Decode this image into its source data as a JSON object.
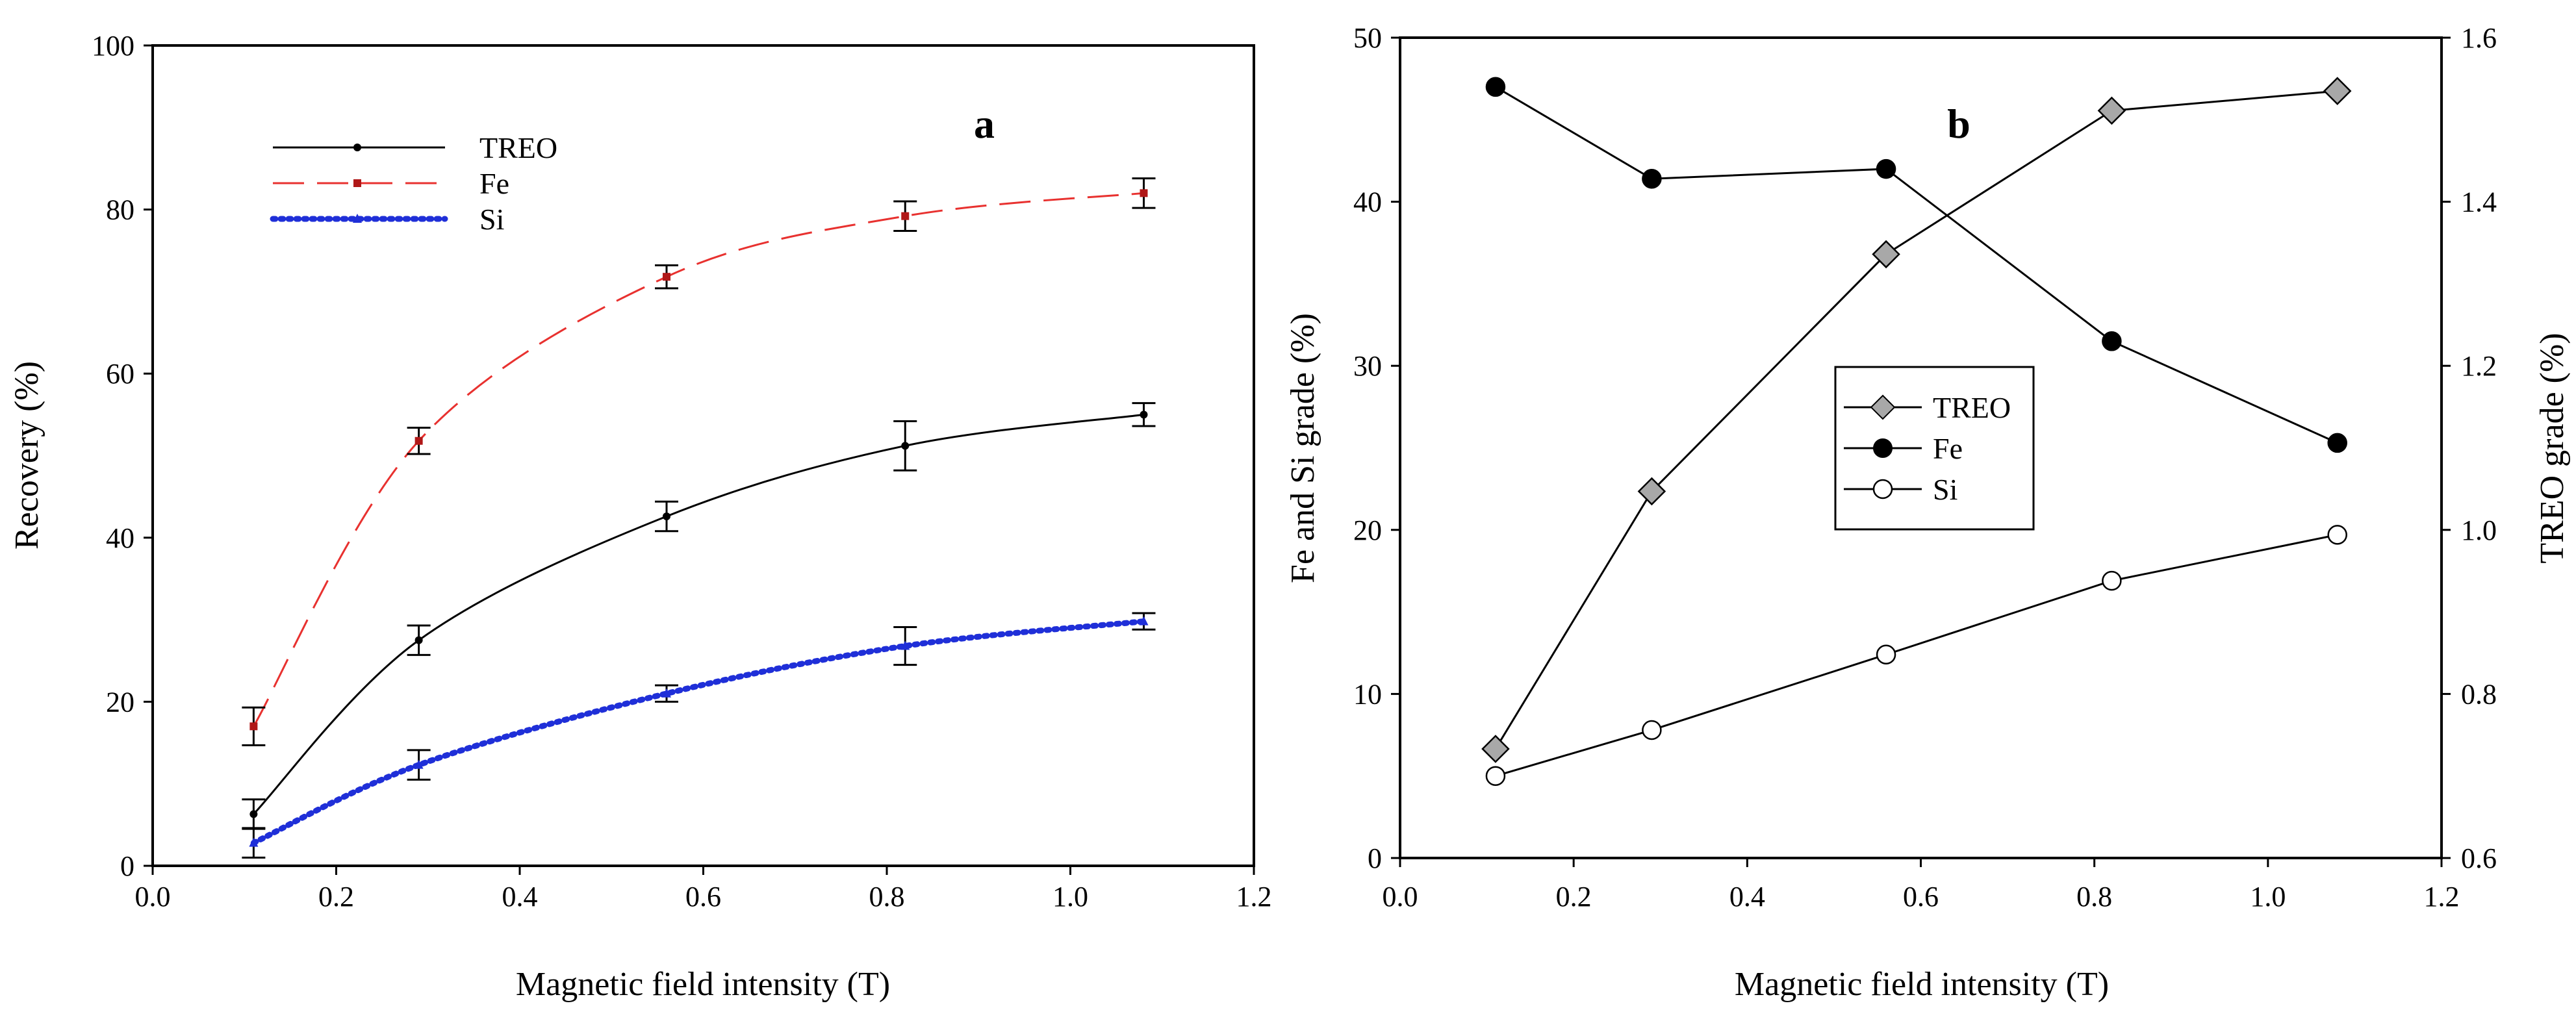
{
  "chart_data": [
    {
      "panel": "a",
      "type": "line",
      "xlabel": "Magnetic field intensity (T)",
      "ylabel": "Recovery (%)",
      "xlim": [
        0.0,
        1.2
      ],
      "ylim": [
        0,
        100
      ],
      "xticks": [
        0.0,
        0.2,
        0.4,
        0.6,
        0.8,
        1.0,
        1.2
      ],
      "xtick_labels": [
        "0.0",
        "0.2",
        "0.4",
        "0.6",
        "0.8",
        "1.0",
        "1.2"
      ],
      "yticks": [
        0,
        20,
        40,
        60,
        80,
        100
      ],
      "ytick_labels": [
        "0",
        "20",
        "40",
        "60",
        "80",
        "100"
      ],
      "legend_position": "top-left",
      "series": [
        {
          "name": "TREO",
          "color": "#000000",
          "line_style": "solid",
          "marker": "dot",
          "x": [
            0.11,
            0.29,
            0.56,
            0.82,
            1.08
          ],
          "y": [
            6.3,
            27.5,
            42.6,
            51.2,
            55.0
          ],
          "error": [
            1.8,
            1.8,
            1.8,
            3.0,
            1.4
          ]
        },
        {
          "name": "Fe",
          "color": "#e8312f",
          "line_style": "dashed",
          "marker": "square",
          "x": [
            0.11,
            0.29,
            0.56,
            0.82,
            1.08
          ],
          "y": [
            17.0,
            51.8,
            71.8,
            79.2,
            82.0
          ],
          "error": [
            2.3,
            1.6,
            1.4,
            1.8,
            1.8
          ]
        },
        {
          "name": "Si",
          "color": "#1f2fd8",
          "line_style": "dotted",
          "marker": "triangle",
          "x": [
            0.11,
            0.29,
            0.56,
            0.82,
            1.08
          ],
          "y": [
            2.8,
            12.3,
            21.0,
            26.8,
            29.8
          ],
          "error": [
            1.8,
            1.8,
            1.0,
            2.3,
            1.0
          ]
        }
      ]
    },
    {
      "panel": "b",
      "type": "line",
      "xlabel": "Magnetic field intensity (T)",
      "ylabel": "Fe and Si grade (%)",
      "ylabel_right": "TREO grade (%)",
      "xlim": [
        0.0,
        1.2
      ],
      "ylim": [
        0,
        50
      ],
      "ylim_right": [
        0.6,
        1.6
      ],
      "xticks": [
        0.0,
        0.2,
        0.4,
        0.6,
        0.8,
        1.0,
        1.2
      ],
      "xtick_labels": [
        "0.0",
        "0.2",
        "0.4",
        "0.6",
        "0.8",
        "1.0",
        "1.2"
      ],
      "yticks": [
        0,
        10,
        20,
        30,
        40,
        50
      ],
      "ytick_labels": [
        "0",
        "10",
        "20",
        "30",
        "40",
        "50"
      ],
      "yticks_right": [
        0.6,
        0.8,
        1.0,
        1.2,
        1.4,
        1.6
      ],
      "ytick_labels_right": [
        "0.6",
        "0.8",
        "1.0",
        "1.2",
        "1.4",
        "1.6"
      ],
      "legend_position": "center",
      "series": [
        {
          "name": "TREO",
          "axis": "right",
          "color": "#000000",
          "marker": "diamond",
          "marker_fill": "#a8a8a8",
          "x": [
            0.11,
            0.29,
            0.56,
            0.82,
            1.08
          ],
          "y": [
            0.733,
            1.047,
            1.336,
            1.511,
            1.535
          ]
        },
        {
          "name": "Fe",
          "axis": "left",
          "color": "#000000",
          "marker": "circle",
          "marker_fill": "#000000",
          "x": [
            0.11,
            0.29,
            0.56,
            0.82,
            1.08
          ],
          "y": [
            47.0,
            41.4,
            42.0,
            31.5,
            25.3
          ]
        },
        {
          "name": "Si",
          "axis": "left",
          "color": "#000000",
          "marker": "circle",
          "marker_fill": "#ffffff",
          "x": [
            0.11,
            0.29,
            0.56,
            0.82,
            1.08
          ],
          "y": [
            5.0,
            7.8,
            12.4,
            16.9,
            19.7
          ]
        }
      ]
    }
  ]
}
